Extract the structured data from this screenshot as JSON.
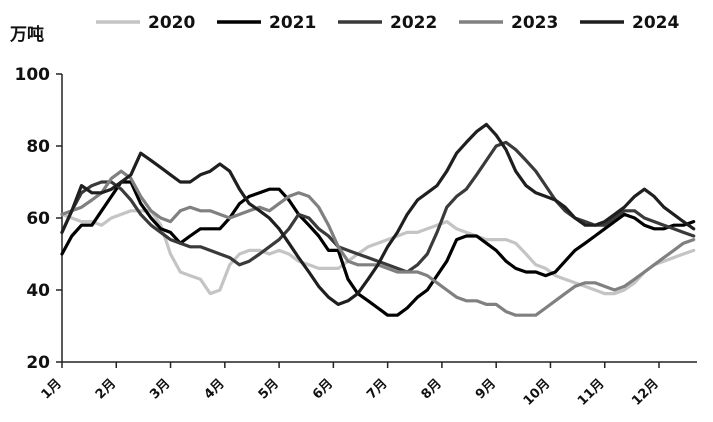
{
  "chart_data": {
    "type": "line",
    "title": "",
    "unit_label": "万吨",
    "xlabel": "",
    "ylabel": "万吨",
    "ylim": [
      20,
      100
    ],
    "y_ticks": [
      20,
      40,
      60,
      80,
      100
    ],
    "categories": [
      "1月",
      "2月",
      "3月",
      "4月",
      "5月",
      "6月",
      "7月",
      "8月",
      "9月",
      "10月",
      "11月",
      "12月"
    ],
    "x_range": [
      1,
      12.7
    ],
    "grid": false,
    "legend_position": "top",
    "series": [
      {
        "name": "2020",
        "color": "#c4c4c4",
        "x": [
          1.0,
          1.18,
          1.36,
          1.55,
          1.73,
          1.91,
          2.09,
          2.27,
          2.45,
          2.64,
          2.82,
          3.0,
          3.18,
          3.36,
          3.55,
          3.73,
          3.91,
          4.09,
          4.27,
          4.45,
          4.64,
          4.82,
          5.0,
          5.18,
          5.36,
          5.55,
          5.73,
          5.91,
          6.09,
          6.27,
          6.45,
          6.64,
          6.82,
          7.0,
          7.18,
          7.36,
          7.55,
          7.73,
          7.91,
          8.09,
          8.27,
          8.45,
          8.64,
          8.82,
          9.0,
          9.18,
          9.36,
          9.55,
          9.73,
          9.91,
          10.09,
          10.27,
          10.45,
          10.64,
          10.82,
          11.0,
          11.18,
          11.36,
          11.55,
          11.73,
          11.91,
          12.09,
          12.27,
          12.45,
          12.64
        ],
        "values": [
          61,
          60,
          59,
          59,
          58,
          60,
          61,
          62,
          62,
          62,
          58,
          50,
          45,
          44,
          43,
          39,
          40,
          47,
          50,
          51,
          51,
          50,
          51,
          50,
          48,
          47,
          46,
          46,
          46,
          48,
          50,
          52,
          53,
          54,
          55,
          56,
          56,
          57,
          58,
          59,
          57,
          56,
          55,
          54,
          54,
          54,
          53,
          50,
          47,
          46,
          44,
          43,
          42,
          41,
          40,
          39,
          39,
          40,
          42,
          45,
          47,
          48,
          49,
          50,
          51
        ]
      },
      {
        "name": "2021",
        "color": "#000000",
        "x": [
          1.0,
          1.18,
          1.36,
          1.55,
          1.73,
          1.91,
          2.09,
          2.27,
          2.45,
          2.64,
          2.82,
          3.0,
          3.18,
          3.36,
          3.55,
          3.73,
          3.91,
          4.09,
          4.27,
          4.45,
          4.64,
          4.82,
          5.0,
          5.18,
          5.36,
          5.55,
          5.73,
          5.91,
          6.09,
          6.27,
          6.45,
          6.64,
          6.82,
          7.0,
          7.18,
          7.36,
          7.55,
          7.73,
          7.91,
          8.09,
          8.27,
          8.45,
          8.64,
          8.82,
          9.0,
          9.18,
          9.36,
          9.55,
          9.73,
          9.91,
          10.09,
          10.27,
          10.45,
          10.64,
          10.82,
          11.0,
          11.18,
          11.36,
          11.55,
          11.73,
          11.91,
          12.09,
          12.27,
          12.45,
          12.64
        ],
        "values": [
          50,
          55,
          58,
          58,
          62,
          66,
          70,
          70,
          64,
          60,
          57,
          56,
          53,
          55,
          57,
          57,
          57,
          60,
          64,
          66,
          67,
          68,
          68,
          65,
          61,
          58,
          55,
          51,
          51,
          43,
          39,
          37,
          35,
          33,
          33,
          35,
          38,
          40,
          44,
          48,
          54,
          55,
          55,
          53,
          51,
          48,
          46,
          45,
          45,
          44,
          45,
          48,
          51,
          53,
          55,
          57,
          59,
          61,
          60,
          58,
          57,
          57,
          58,
          58,
          59
        ]
      },
      {
        "name": "2022",
        "color": "#3a3a3a",
        "x": [
          1.0,
          1.18,
          1.36,
          1.55,
          1.73,
          1.91,
          2.09,
          2.27,
          2.45,
          2.64,
          2.82,
          3.0,
          3.18,
          3.36,
          3.55,
          3.73,
          3.91,
          4.09,
          4.27,
          4.45,
          4.64,
          4.82,
          5.0,
          5.18,
          5.36,
          5.55,
          5.73,
          5.91,
          6.09,
          6.27,
          6.45,
          6.64,
          6.82,
          7.0,
          7.18,
          7.36,
          7.55,
          7.73,
          7.91,
          8.09,
          8.27,
          8.45,
          8.64,
          8.82,
          9.0,
          9.18,
          9.36,
          9.55,
          9.73,
          9.91,
          10.09,
          10.27,
          10.45,
          10.64,
          10.82,
          11.0,
          11.18,
          11.36,
          11.55,
          11.73,
          11.91,
          12.09,
          12.27,
          12.45,
          12.64
        ],
        "values": [
          56,
          62,
          67,
          69,
          70,
          70,
          68,
          65,
          61,
          58,
          56,
          54,
          53,
          52,
          52,
          51,
          50,
          49,
          47,
          48,
          50,
          52,
          54,
          57,
          61,
          60,
          57,
          55,
          52,
          51,
          50,
          49,
          48,
          47,
          46,
          45,
          47,
          50,
          56,
          63,
          66,
          68,
          72,
          76,
          80,
          81,
          79,
          76,
          73,
          69,
          65,
          62,
          60,
          59,
          58,
          58,
          60,
          62,
          62,
          60,
          59,
          58,
          57,
          56,
          55
        ]
      },
      {
        "name": "2023",
        "color": "#808080",
        "x": [
          1.0,
          1.18,
          1.36,
          1.55,
          1.73,
          1.91,
          2.09,
          2.27,
          2.45,
          2.64,
          2.82,
          3.0,
          3.18,
          3.36,
          3.55,
          3.73,
          3.91,
          4.09,
          4.27,
          4.45,
          4.64,
          4.82,
          5.0,
          5.18,
          5.36,
          5.55,
          5.73,
          5.91,
          6.09,
          6.27,
          6.45,
          6.64,
          6.82,
          7.0,
          7.18,
          7.36,
          7.55,
          7.73,
          7.91,
          8.09,
          8.27,
          8.45,
          8.64,
          8.82,
          9.0,
          9.18,
          9.36,
          9.55,
          9.73,
          9.91,
          10.09,
          10.27,
          10.45,
          10.64,
          10.82,
          11.0,
          11.18,
          11.36,
          11.55,
          11.73,
          11.91,
          12.09,
          12.27,
          12.45,
          12.64
        ],
        "values": [
          61,
          62,
          63,
          65,
          67,
          71,
          73,
          71,
          66,
          62,
          60,
          59,
          62,
          63,
          62,
          62,
          61,
          60,
          61,
          62,
          63,
          62,
          64,
          66,
          67,
          66,
          63,
          58,
          52,
          48,
          47,
          47,
          47,
          46,
          45,
          45,
          45,
          44,
          42,
          40,
          38,
          37,
          37,
          36,
          36,
          34,
          33,
          33,
          33,
          35,
          37,
          39,
          41,
          42,
          42,
          41,
          40,
          41,
          43,
          45,
          47,
          49,
          51,
          53,
          54
        ]
      },
      {
        "name": "2024",
        "color": "#1f1f1f",
        "x": [
          1.0,
          1.18,
          1.36,
          1.55,
          1.73,
          1.91,
          2.09,
          2.27,
          2.45,
          2.64,
          2.82,
          3.0,
          3.18,
          3.36,
          3.55,
          3.73,
          3.91,
          4.09,
          4.27,
          4.45,
          4.64,
          4.82,
          5.0,
          5.18,
          5.36,
          5.55,
          5.73,
          5.91,
          6.09,
          6.27,
          6.45,
          6.64,
          6.82,
          7.0,
          7.18,
          7.36,
          7.55,
          7.73,
          7.91,
          8.09,
          8.27,
          8.45,
          8.64,
          8.82,
          9.0,
          9.18,
          9.36,
          9.55,
          9.73,
          9.91,
          10.09,
          10.27,
          10.45,
          10.64,
          10.82,
          11.0,
          11.18,
          11.36,
          11.55,
          11.73,
          11.91,
          12.09,
          12.27,
          12.45,
          12.64
        ],
        "values": [
          56,
          62,
          69,
          67,
          67,
          68,
          70,
          72,
          78,
          76,
          74,
          72,
          70,
          70,
          72,
          73,
          75,
          73,
          68,
          64,
          62,
          60,
          57,
          53,
          49,
          45,
          41,
          38,
          36,
          37,
          39,
          43,
          47,
          52,
          56,
          61,
          65,
          67,
          69,
          73,
          78,
          81,
          84,
          86,
          83,
          79,
          73,
          69,
          67,
          66,
          65,
          63,
          60,
          58,
          58,
          59,
          61,
          63,
          66,
          68,
          66,
          63,
          61,
          59,
          57
        ]
      }
    ]
  }
}
